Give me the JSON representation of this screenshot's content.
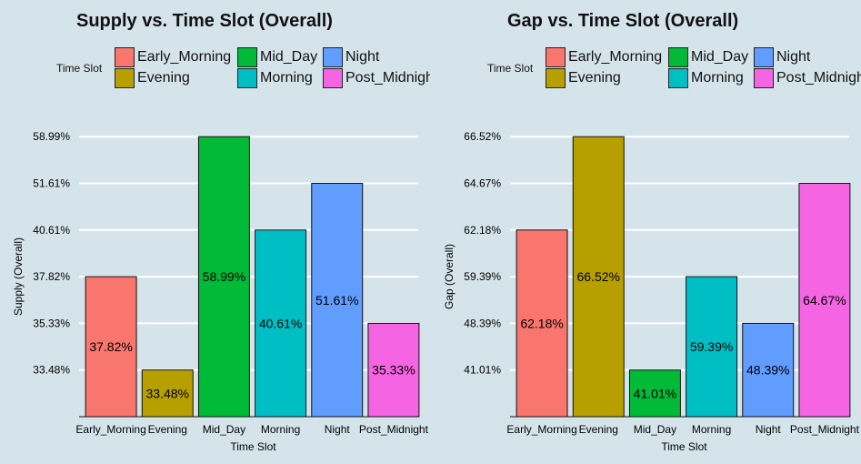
{
  "chart_data": [
    {
      "type": "bar",
      "title": "Supply vs. Time Slot (Overall)",
      "xlabel": "Time Slot",
      "ylabel": "Supply (Overall)",
      "legend_title": "Time Slot",
      "legend_position": "top",
      "categories": [
        "Early_Morning",
        "Evening",
        "Mid_Day",
        "Morning",
        "Night",
        "Post_Midnight"
      ],
      "values": [
        "37.82%",
        "33.48%",
        "58.99%",
        "40.61%",
        "51.61%",
        "35.33%"
      ],
      "y_tick_labels": [
        "33.48%",
        "35.33%",
        "37.82%",
        "40.61%",
        "51.61%",
        "58.99%"
      ],
      "y_axis": "discrete",
      "grid": true
    },
    {
      "type": "bar",
      "title": "Gap vs. Time Slot (Overall)",
      "xlabel": "Time Slot",
      "ylabel": "Gap (Overall)",
      "legend_title": "Time Slot",
      "legend_position": "top",
      "categories": [
        "Early_Morning",
        "Evening",
        "Mid_Day",
        "Morning",
        "Night",
        "Post_Midnight"
      ],
      "values": [
        "62.18%",
        "66.52%",
        "41.01%",
        "59.39%",
        "48.39%",
        "64.67%"
      ],
      "y_tick_labels": [
        "41.01%",
        "48.39%",
        "59.39%",
        "62.18%",
        "64.67%",
        "66.52%"
      ],
      "y_axis": "discrete",
      "grid": true
    }
  ],
  "legend_order": [
    "Early_Morning",
    "Mid_Day",
    "Night",
    "Evening",
    "Morning",
    "Post_Midnight"
  ],
  "colors": {
    "Early_Morning": "#f8766d",
    "Evening": "#b79f00",
    "Mid_Day": "#00ba38",
    "Morning": "#00bfc4",
    "Night": "#619cff",
    "Post_Midnight": "#f564e3",
    "background": "#d5e4eb",
    "grid": "#ffffff"
  }
}
